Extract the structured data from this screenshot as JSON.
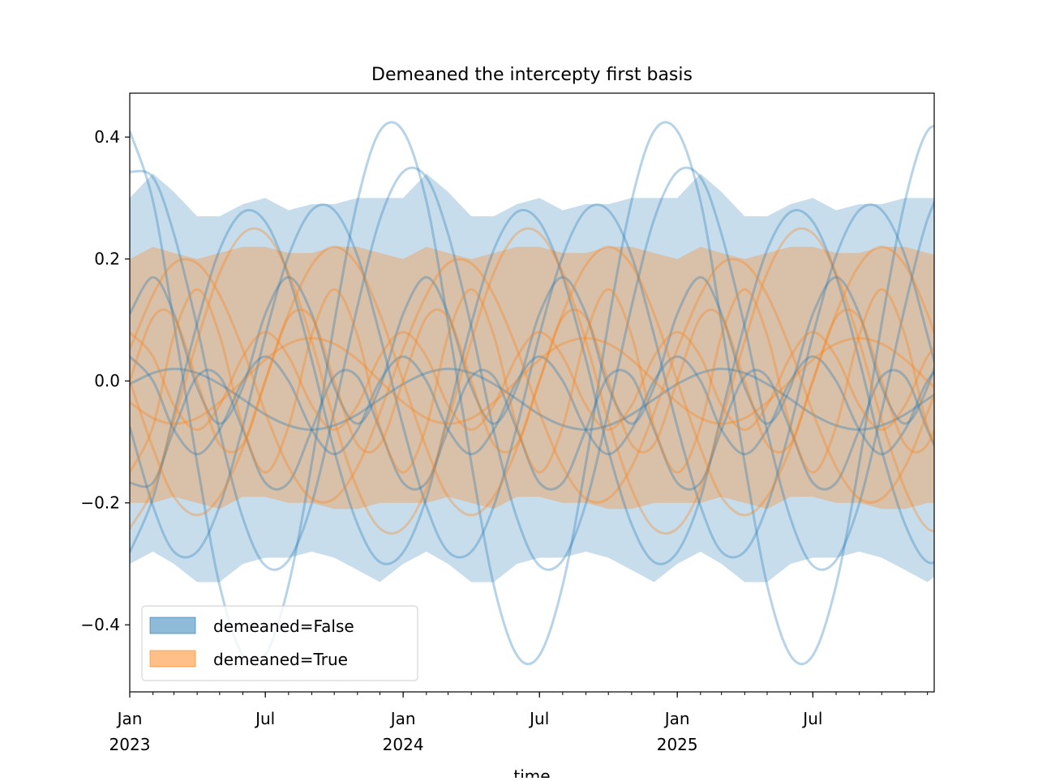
{
  "chart_data": {
    "type": "line",
    "title": "Demeaned the intercepty first basis",
    "xlabel": "time",
    "ylabel": "",
    "xlim": [
      "2023-01-01",
      "2025-12-10"
    ],
    "ylim": [
      -0.51,
      0.472
    ],
    "grid": false,
    "legend_placement": "lower-left",
    "yticks": [
      0.4,
      0.2,
      0.0,
      -0.2,
      -0.4
    ],
    "ytick_labels": [
      "0.4",
      "0.2",
      "0.0",
      "−0.2",
      "−0.4"
    ],
    "xticks": [
      {
        "date": "2023-01-01",
        "label": "Jan",
        "sub": "2023"
      },
      {
        "date": "2023-07-01",
        "label": "Jul",
        "sub": ""
      },
      {
        "date": "2024-01-01",
        "label": "Jan",
        "sub": "2024"
      },
      {
        "date": "2024-07-01",
        "label": "Jul",
        "sub": ""
      },
      {
        "date": "2025-01-01",
        "label": "Jan",
        "sub": "2025"
      },
      {
        "date": "2025-07-01",
        "label": "Jul",
        "sub": ""
      }
    ],
    "colors": {
      "demeaned_false": "#1f77b4",
      "demeaned_true": "#ff7f0e"
    },
    "legend": [
      {
        "label": "demeaned=False",
        "color": "#1f77b4"
      },
      {
        "label": "demeaned=True",
        "color": "#ff7f0e"
      }
    ],
    "x": [
      "2023-01",
      "2023-02",
      "2023-03",
      "2023-04",
      "2023-05",
      "2023-06",
      "2023-07",
      "2023-08",
      "2023-09",
      "2023-10",
      "2023-11",
      "2023-12",
      "2024-01",
      "2024-02",
      "2024-03",
      "2024-04",
      "2024-05",
      "2024-06",
      "2024-07",
      "2024-08",
      "2024-09",
      "2024-10",
      "2024-11",
      "2024-12",
      "2025-01",
      "2025-02",
      "2025-03",
      "2025-04",
      "2025-05",
      "2025-06",
      "2025-07",
      "2025-08",
      "2025-09",
      "2025-10",
      "2025-11",
      "2025-12",
      "2026-01"
    ],
    "bands": [
      {
        "group": "demeaned=False",
        "upper": [
          0.3,
          0.34,
          0.31,
          0.27,
          0.27,
          0.29,
          0.3,
          0.28,
          0.29,
          0.29,
          0.3,
          0.3,
          0.3,
          0.34,
          0.31,
          0.27,
          0.27,
          0.29,
          0.3,
          0.28,
          0.29,
          0.29,
          0.3,
          0.3,
          0.3,
          0.34,
          0.31,
          0.27,
          0.27,
          0.29,
          0.3,
          0.28,
          0.29,
          0.29,
          0.3,
          0.3,
          0.3
        ],
        "lower": [
          -0.3,
          -0.28,
          -0.3,
          -0.33,
          -0.33,
          -0.3,
          -0.29,
          -0.29,
          -0.28,
          -0.29,
          -0.31,
          -0.33,
          -0.3,
          -0.28,
          -0.3,
          -0.33,
          -0.33,
          -0.3,
          -0.29,
          -0.29,
          -0.28,
          -0.29,
          -0.31,
          -0.33,
          -0.3,
          -0.28,
          -0.3,
          -0.33,
          -0.33,
          -0.3,
          -0.29,
          -0.29,
          -0.28,
          -0.29,
          -0.31,
          -0.33,
          -0.3
        ]
      },
      {
        "group": "demeaned=True",
        "upper": [
          0.2,
          0.22,
          0.21,
          0.2,
          0.21,
          0.22,
          0.22,
          0.21,
          0.21,
          0.22,
          0.22,
          0.21,
          0.2,
          0.22,
          0.21,
          0.2,
          0.21,
          0.22,
          0.22,
          0.21,
          0.21,
          0.22,
          0.22,
          0.21,
          0.2,
          0.22,
          0.21,
          0.2,
          0.21,
          0.22,
          0.22,
          0.21,
          0.21,
          0.22,
          0.22,
          0.21,
          0.2
        ],
        "lower": [
          -0.2,
          -0.2,
          -0.19,
          -0.2,
          -0.21,
          -0.19,
          -0.19,
          -0.2,
          -0.2,
          -0.21,
          -0.21,
          -0.2,
          -0.2,
          -0.2,
          -0.19,
          -0.2,
          -0.21,
          -0.19,
          -0.19,
          -0.2,
          -0.2,
          -0.21,
          -0.21,
          -0.2,
          -0.2,
          -0.2,
          -0.19,
          -0.2,
          -0.21,
          -0.19,
          -0.19,
          -0.2,
          -0.2,
          -0.21,
          -0.21,
          -0.2,
          -0.2
        ]
      }
    ],
    "series": [
      {
        "group": "demeaned=False",
        "values": [
          0.41,
          0.295,
          0.095,
          -0.135,
          -0.335,
          -0.45,
          -0.45,
          -0.335,
          -0.135,
          0.095,
          0.295,
          0.41,
          0.41,
          0.295,
          0.095,
          -0.135,
          -0.335,
          -0.45,
          -0.45,
          -0.335,
          -0.135,
          0.095,
          0.295,
          0.41,
          0.41,
          0.295,
          0.095,
          -0.135,
          -0.335,
          -0.45,
          -0.45,
          -0.335,
          -0.135,
          0.095,
          0.295,
          0.41,
          0.41
        ]
      },
      {
        "group": "demeaned=False",
        "values": [
          0.343,
          0.334,
          0.241,
          0.089,
          -0.082,
          -0.225,
          -0.303,
          -0.294,
          -0.201,
          -0.049,
          0.122,
          0.265,
          0.343,
          0.334,
          0.241,
          0.089,
          -0.082,
          -0.225,
          -0.303,
          -0.294,
          -0.201,
          -0.049,
          0.122,
          0.265,
          0.343,
          0.334,
          0.241,
          0.089,
          -0.082,
          -0.225,
          -0.303,
          -0.294,
          -0.201,
          -0.049,
          0.122,
          0.265,
          0.343
        ]
      },
      {
        "group": "demeaned=False",
        "values": [
          -0.281,
          -0.192,
          -0.055,
          0.094,
          0.215,
          0.277,
          0.261,
          0.172,
          0.035,
          -0.114,
          -0.235,
          -0.297,
          -0.281,
          -0.192,
          -0.055,
          0.094,
          0.215,
          0.277,
          0.261,
          0.172,
          0.035,
          -0.114,
          -0.235,
          -0.297,
          -0.281,
          -0.192,
          -0.055,
          0.094,
          0.215,
          0.277,
          0.261,
          0.172,
          0.035,
          -0.114,
          -0.235,
          -0.297,
          -0.281
        ]
      },
      {
        "group": "demeaned=False",
        "values": [
          -0.075,
          -0.205,
          -0.28,
          -0.28,
          -0.205,
          -0.075,
          0.075,
          0.205,
          0.28,
          0.28,
          0.205,
          0.075,
          -0.075,
          -0.205,
          -0.28,
          -0.28,
          -0.205,
          -0.075,
          0.075,
          0.205,
          0.28,
          0.28,
          0.205,
          0.075,
          -0.075,
          -0.205,
          -0.28,
          -0.28,
          -0.205,
          -0.075,
          0.075,
          0.205,
          0.28,
          0.28,
          0.205,
          0.075,
          -0.075
        ]
      },
      {
        "group": "demeaned=False",
        "values": [
          0.11,
          0.17,
          0.11,
          -0.01,
          -0.07,
          -0.01,
          0.11,
          0.17,
          0.11,
          -0.01,
          -0.07,
          -0.01,
          0.11,
          0.17,
          0.11,
          -0.01,
          -0.07,
          -0.01,
          0.11,
          0.17,
          0.11,
          -0.01,
          -0.07,
          -0.01,
          0.11,
          0.17,
          0.11,
          -0.01,
          -0.07,
          -0.01,
          0.11,
          0.17,
          0.11,
          -0.01,
          -0.07,
          -0.01,
          0.11
        ]
      },
      {
        "group": "demeaned=False",
        "values": [
          -0.167,
          -0.167,
          -0.08,
          0.007,
          0.007,
          -0.08,
          -0.167,
          -0.167,
          -0.08,
          0.007,
          0.007,
          -0.08,
          -0.167,
          -0.167,
          -0.08,
          0.007,
          0.007,
          -0.08,
          -0.167,
          -0.167,
          -0.08,
          0.007,
          0.007,
          -0.08,
          -0.167,
          -0.167,
          -0.08,
          0.007,
          0.007,
          -0.08,
          -0.167,
          -0.167,
          -0.08,
          0.007,
          0.007,
          -0.08,
          -0.167
        ]
      },
      {
        "group": "demeaned=False",
        "values": [
          -0.005,
          0.013,
          0.02,
          0.013,
          -0.005,
          -0.03,
          -0.055,
          -0.073,
          -0.08,
          -0.073,
          -0.055,
          -0.03,
          -0.005,
          0.013,
          0.02,
          0.013,
          -0.005,
          -0.03,
          -0.055,
          -0.073,
          -0.08,
          -0.073,
          -0.055,
          -0.03,
          -0.005,
          0.013,
          0.02,
          0.013,
          -0.005,
          -0.03,
          -0.055,
          -0.073,
          -0.08,
          -0.073,
          -0.055,
          -0.03,
          -0.005
        ]
      },
      {
        "group": "demeaned=False",
        "values": [
          0.04,
          0,
          -0.08,
          -0.12,
          -0.08,
          0,
          0.04,
          0,
          -0.08,
          -0.12,
          -0.08,
          0,
          0.04,
          0,
          -0.08,
          -0.12,
          -0.08,
          0,
          0.04,
          0,
          -0.08,
          -0.12,
          -0.08,
          0,
          0.04,
          0,
          -0.08,
          -0.12,
          -0.08,
          0,
          0.04,
          0,
          -0.08,
          -0.12,
          -0.08,
          0,
          0.04
        ]
      },
      {
        "group": "demeaned=True",
        "values": [
          -0.242,
          -0.177,
          -0.065,
          0.065,
          0.177,
          0.242,
          0.242,
          0.177,
          0.065,
          -0.065,
          -0.177,
          -0.242,
          -0.242,
          -0.177,
          -0.065,
          0.065,
          0.177,
          0.242,
          0.242,
          0.177,
          0.065,
          -0.065,
          -0.177,
          -0.242,
          -0.242,
          -0.177,
          -0.065,
          0.065,
          0.177,
          0.242,
          0.242,
          0.177,
          0.065,
          -0.065,
          -0.177,
          -0.242,
          -0.242
        ]
      },
      {
        "group": "demeaned=True",
        "values": [
          0,
          -0.11,
          -0.19,
          -0.22,
          -0.19,
          -0.11,
          0,
          0.11,
          0.19,
          0.22,
          0.19,
          0.11,
          0,
          -0.11,
          -0.19,
          -0.22,
          -0.19,
          -0.11,
          0,
          0.11,
          0.19,
          0.22,
          0.19,
          0.11,
          0,
          -0.11,
          -0.19,
          -0.22,
          -0.19,
          -0.11,
          0,
          0.11,
          0.19,
          0.22,
          0.19,
          0.11,
          0
        ]
      },
      {
        "group": "demeaned=True",
        "values": [
          0.052,
          0.141,
          0.193,
          0.193,
          0.141,
          0.052,
          -0.052,
          -0.141,
          -0.193,
          -0.193,
          -0.141,
          -0.052,
          0.052,
          0.141,
          0.193,
          0.193,
          0.141,
          0.052,
          -0.052,
          -0.141,
          -0.193,
          -0.193,
          -0.141,
          -0.052,
          0.052,
          0.141,
          0.193,
          0.193,
          0.141,
          0.052,
          -0.052,
          -0.141,
          -0.193,
          -0.193,
          -0.141,
          -0.052,
          0.052
        ]
      },
      {
        "group": "demeaned=True",
        "values": [
          0,
          0.104,
          0.104,
          0,
          -0.104,
          -0.104,
          0,
          0.104,
          0.104,
          0,
          -0.104,
          -0.104,
          0,
          0.104,
          0.104,
          0,
          -0.104,
          -0.104,
          0,
          0.104,
          0.104,
          0,
          -0.104,
          -0.104,
          0,
          0.104,
          0.104,
          0,
          -0.104,
          -0.104,
          0,
          0.104,
          0.104,
          0,
          -0.104,
          -0.104,
          0
        ]
      },
      {
        "group": "demeaned=True",
        "values": [
          0.08,
          0.04,
          -0.04,
          -0.08,
          -0.04,
          0.04,
          0.08,
          0.04,
          -0.04,
          -0.08,
          -0.04,
          0.04,
          0.08,
          0.04,
          -0.04,
          -0.08,
          -0.04,
          0.04,
          0.08,
          0.04,
          -0.04,
          -0.08,
          -0.04,
          0.04,
          0.08,
          0.04,
          -0.04,
          -0.08,
          -0.04,
          0.04,
          0.08,
          0.04,
          -0.04,
          -0.08,
          -0.04,
          0.04,
          0.08
        ]
      },
      {
        "group": "demeaned=True",
        "values": [
          -0.035,
          -0.061,
          -0.07,
          -0.061,
          -0.035,
          0,
          0.035,
          0.061,
          0.07,
          0.061,
          0.035,
          0,
          -0.035,
          -0.061,
          -0.07,
          -0.061,
          -0.035,
          0,
          0.035,
          0.061,
          0.07,
          0.061,
          0.035,
          0,
          -0.035,
          -0.061,
          -0.07,
          -0.061,
          -0.035,
          0,
          0.035,
          0.061,
          0.07,
          0.061,
          0.035,
          0,
          -0.035
        ]
      },
      {
        "group": "demeaned=True",
        "values": [
          -0.15,
          -0.075,
          0.075,
          0.15,
          0.075,
          -0.075,
          -0.15,
          -0.075,
          0.075,
          0.15,
          0.075,
          -0.075,
          -0.15,
          -0.075,
          0.075,
          0.15,
          0.075,
          -0.075,
          -0.15,
          -0.075,
          0.075,
          0.15,
          0.075,
          -0.075,
          -0.15,
          -0.075,
          0.075,
          0.15,
          0.075,
          -0.075,
          -0.15,
          -0.075,
          0.075,
          0.15,
          0.075,
          -0.075,
          -0.15
        ]
      }
    ]
  }
}
